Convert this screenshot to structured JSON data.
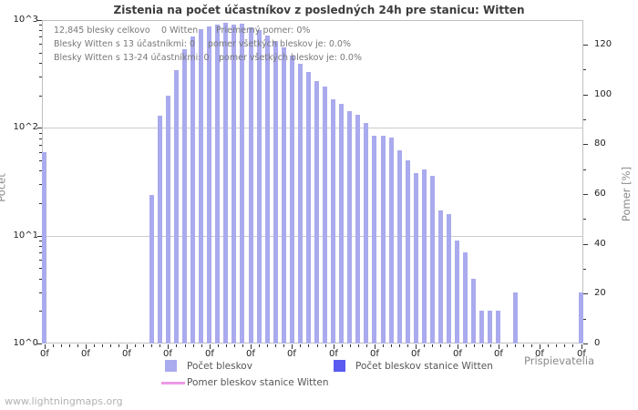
{
  "footer": {
    "watermark": "www.lightningmaps.org"
  },
  "annotation": {
    "l1a": "12,845 blesky celkovo",
    "l1b": "0 Witten",
    "l1c": "Priemerný pomer: 0%",
    "l2a": "Blesky Witten s 13 účastníkmi: 0",
    "l2b": "pomer všetkých bleskov je: 0.0%",
    "l3a": "Blesky Witten s 13-24 účastníkmi: 0",
    "l3b": "pomer všetkých bleskov je: 0.0%"
  },
  "colors": {
    "bar": "#aaaaee",
    "station_bar": "#5a5af0",
    "ratio_line": "#ee99e6",
    "grid": "#cccccc",
    "tick": "#333333"
  },
  "chart_data": {
    "type": "bar",
    "title": "Zistenia na počet účastníkov z posledných 24h pre stanicu: Witten",
    "xlabel": "Prispievatelia",
    "ylabel": "Počet",
    "y2label": "Pomer [%]",
    "y_scale": "log",
    "ylim_left": [
      1,
      1000
    ],
    "ylim_right": [
      0,
      130
    ],
    "grid": "horizontal-decades",
    "legend_position": "bottom",
    "x_axis": {
      "label": "Prispievatelia",
      "tick_labels": [
        "0f",
        "0f",
        "0f",
        "0f",
        "0f",
        "0f",
        "0f",
        "0f",
        "0f",
        "0f",
        "0f",
        "0f",
        "0f",
        "0f"
      ],
      "minor_ticks_per_major": 5,
      "slots": 66
    },
    "y_axis_left": {
      "label": "Počet",
      "scale": "log",
      "ticks": [
        "10^3",
        "10^2",
        "10^1",
        "10^0"
      ],
      "tick_exponents": [
        3,
        2,
        1,
        0
      ]
    },
    "y_axis_right": {
      "label": "Pomer [%]",
      "ticks": [
        120,
        100,
        80,
        60,
        40,
        20,
        0
      ],
      "minor_step": 10
    },
    "series": [
      {
        "name": "Počet bleskov",
        "type": "bar",
        "color": "#aaaaee",
        "values": [
          60,
          0,
          0,
          0,
          0,
          0,
          0,
          0,
          0,
          0,
          0,
          0,
          0,
          24,
          130,
          200,
          340,
          540,
          700,
          830,
          880,
          910,
          940,
          900,
          920,
          850,
          800,
          720,
          640,
          560,
          470,
          390,
          330,
          270,
          240,
          185,
          168,
          142,
          132,
          112,
          84,
          84,
          82,
          62,
          50,
          38,
          41,
          36,
          17,
          16,
          9,
          7,
          4,
          2,
          2,
          2,
          0,
          3,
          0,
          0,
          0,
          0,
          0,
          0,
          0,
          3
        ]
      },
      {
        "name": "Počet bleskov stanice Witten",
        "type": "bar",
        "color": "#5a5af0",
        "total": 0,
        "values_note": "station detected 0 strokes - no visible bars"
      },
      {
        "name": "Pomer bleskov stanice Witten",
        "type": "line",
        "color": "#ee99e6",
        "constant_value": 0,
        "values_note": "ratio is 0% - line sits on baseline, not visible"
      }
    ],
    "totals": {
      "blesky_celkovo": "12,845",
      "witten_strokes": 0,
      "priemerny_pomer": "0%"
    }
  }
}
